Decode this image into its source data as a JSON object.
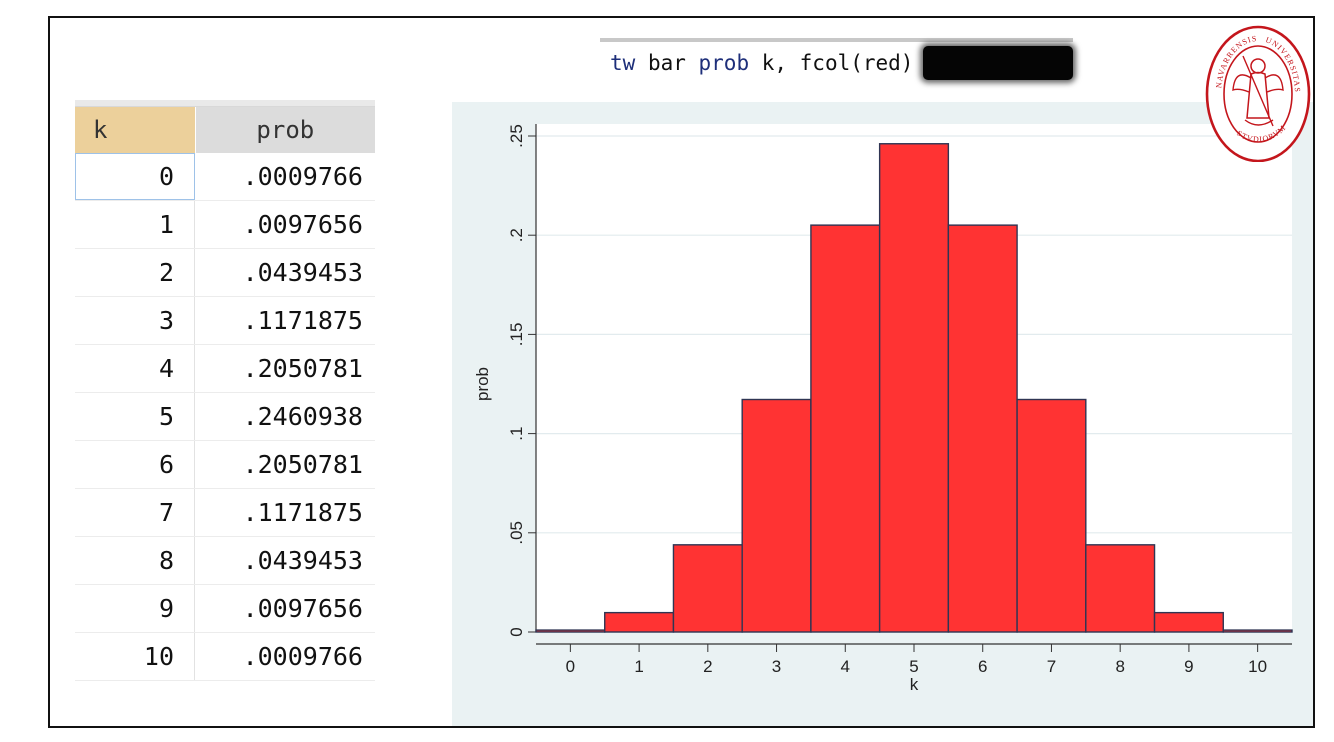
{
  "command": {
    "parts": [
      {
        "text": "tw",
        "kw": true
      },
      {
        "text": " bar ",
        "kw": false
      },
      {
        "text": "prob",
        "kw": true
      },
      {
        "text": " k, fcol(red)",
        "kw": false
      }
    ]
  },
  "table": {
    "headers": {
      "k": "k",
      "prob": "prob"
    },
    "rows": [
      {
        "k": "0",
        "prob": ".0009766"
      },
      {
        "k": "1",
        "prob": ".0097656"
      },
      {
        "k": "2",
        "prob": ".0439453"
      },
      {
        "k": "3",
        "prob": ".1171875"
      },
      {
        "k": "4",
        "prob": ".2050781"
      },
      {
        "k": "5",
        "prob": ".2460938"
      },
      {
        "k": "6",
        "prob": ".2050781"
      },
      {
        "k": "7",
        "prob": ".1171875"
      },
      {
        "k": "8",
        "prob": ".0439453"
      },
      {
        "k": "9",
        "prob": ".0097656"
      },
      {
        "k": "10",
        "prob": ".0009766"
      }
    ]
  },
  "seal": {
    "top_text": "NAVARRENSIS",
    "right_text": "UNIVERSITAS",
    "bottom_text": "STVDIORVM"
  },
  "colors": {
    "bar_fill": "#ff3333",
    "bar_stroke": "#2f3553",
    "plot_bg": "#ffffff",
    "panel_bg": "#eaf2f3",
    "seal": "#c4161c",
    "command_keyword": "#1e2f7a"
  },
  "chart_data": {
    "type": "bar",
    "x": [
      0,
      1,
      2,
      3,
      4,
      5,
      6,
      7,
      8,
      9,
      10
    ],
    "values": [
      0.0009766,
      0.0097656,
      0.0439453,
      0.1171875,
      0.2050781,
      0.2460938,
      0.2050781,
      0.1171875,
      0.0439453,
      0.0097656,
      0.0009766
    ],
    "xlabel": "k",
    "ylabel": "prob",
    "xticks": [
      "0",
      "1",
      "2",
      "3",
      "4",
      "5",
      "6",
      "7",
      "8",
      "9",
      "10"
    ],
    "yticks": [
      {
        "value": 0,
        "label": "0"
      },
      {
        "value": 0.05,
        "label": ".05"
      },
      {
        "value": 0.1,
        "label": ".1"
      },
      {
        "value": 0.15,
        "label": ".15"
      },
      {
        "value": 0.2,
        "label": ".2"
      },
      {
        "value": 0.25,
        "label": ".25"
      }
    ],
    "xlim": [
      -0.5,
      10.5
    ],
    "ylim": [
      0,
      0.25
    ],
    "grid": "horizontal",
    "ylabel_rotation": "vertical"
  }
}
